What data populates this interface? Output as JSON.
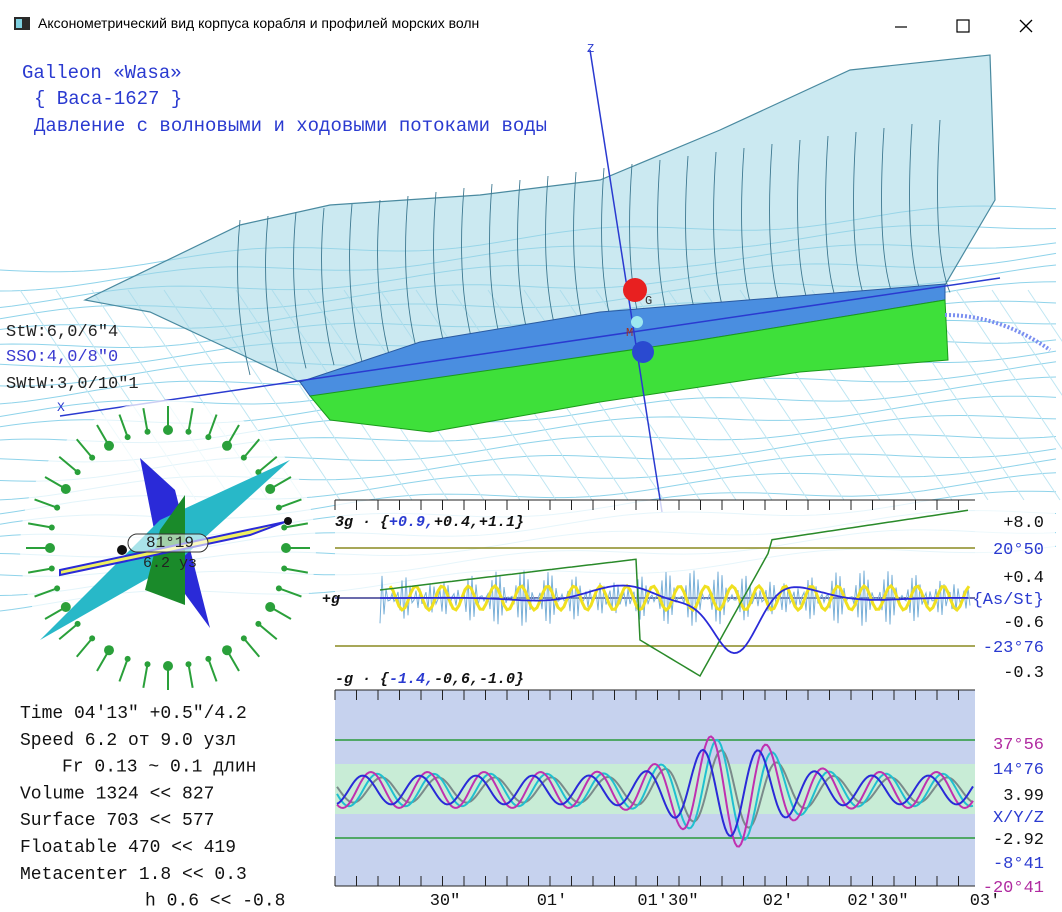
{
  "window": {
    "title": "Аксонометрический вид корпуса корабля и профилей морских волн"
  },
  "header": {
    "lines": [
      "Galleon «Wasa»",
      "{ Васа-1627 }",
      "Давление с волновыми и ходовыми потоками воды"
    ]
  },
  "axis_labels": {
    "z": "Z",
    "x": "X",
    "g": "G",
    "m": "M"
  },
  "waves": [
    "StW:6,0/6\"4",
    "SSO:4,0/8\"0",
    "SWtW:3,0/10\"1"
  ],
  "compass": {
    "course": "81°19",
    "speed": "6.2 уз"
  },
  "stats": [
    "Time 04'13\" +0.5\"/4.2",
    "Speed 6.2 от 9.0 узл",
    "Fr 0.13 ~ 0.1 длин",
    "Volume 1324 << 827",
    "Surface 703 << 577",
    "Floatable 470 << 419",
    "Metacenter 1.8 << 0.3",
    "h 0.6 << -0.8"
  ],
  "upper_plot": {
    "top_label": [
      "3g · {",
      "+0.9,",
      "+0.4,+1.1}"
    ],
    "mid_label": "+g",
    "bottom_label": [
      "-g · {",
      "-1.4,",
      "-0,6,-1.0}"
    ],
    "right_labels": [
      "+8.0",
      "20°50",
      "+0.4",
      "{As/St}",
      "-0.6",
      "-23°76",
      "-0.3"
    ]
  },
  "lower_plot": {
    "right_labels": [
      "37°56",
      "14°76",
      "3.99",
      "X/Y/Z",
      "-2.92",
      "-8°41",
      "-20°41"
    ]
  },
  "time_axis": [
    "30\"",
    "01'",
    "01'30\"",
    "02'",
    "02'30\"",
    "03'"
  ]
}
